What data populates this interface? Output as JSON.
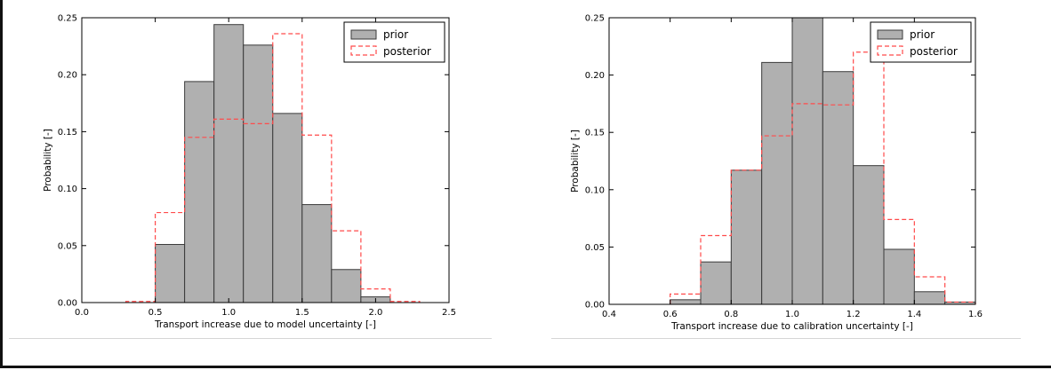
{
  "chart_data": [
    {
      "type": "bar",
      "xlabel": "Transport increase due to model uncertainty [-]",
      "ylabel": "Probability [-]",
      "xlim": [
        0.0,
        2.5
      ],
      "ylim": [
        0.0,
        0.25
      ],
      "xticks": [
        "0.0",
        "0.5",
        "1.0",
        "1.5",
        "2.0",
        "2.5"
      ],
      "yticks": [
        "0.00",
        "0.05",
        "0.10",
        "0.15",
        "0.20",
        "0.25"
      ],
      "bin_edges": [
        0.3,
        0.5,
        0.7,
        0.9,
        1.1,
        1.3,
        1.5,
        1.7,
        1.9,
        2.1,
        2.3
      ],
      "legend_position": "top-right",
      "series": [
        {
          "name": "prior",
          "style": "filled",
          "values": [
            0.0,
            0.051,
            0.194,
            0.244,
            0.226,
            0.166,
            0.086,
            0.029,
            0.005,
            0.0
          ]
        },
        {
          "name": "posterior",
          "style": "dashed",
          "values": [
            0.001,
            0.079,
            0.145,
            0.161,
            0.157,
            0.236,
            0.147,
            0.063,
            0.012,
            0.001
          ]
        }
      ]
    },
    {
      "type": "bar",
      "xlabel": "Transport increase due to calibration uncertainty [-]",
      "ylabel": "Probability [-]",
      "xlim": [
        0.4,
        1.6
      ],
      "ylim": [
        0.0,
        0.25
      ],
      "xticks": [
        "0.4",
        "0.6",
        "0.8",
        "1.0",
        "1.2",
        "1.4",
        "1.6"
      ],
      "yticks": [
        "0.00",
        "0.05",
        "0.10",
        "0.15",
        "0.20",
        "0.25"
      ],
      "bin_edges": [
        0.6,
        0.7,
        0.8,
        0.9,
        1.0,
        1.1,
        1.2,
        1.3,
        1.4,
        1.5,
        1.6
      ],
      "legend_position": "top-right",
      "series": [
        {
          "name": "prior",
          "style": "filled",
          "values": [
            0.004,
            0.037,
            0.117,
            0.211,
            0.25,
            0.203,
            0.121,
            0.048,
            0.011,
            0.002
          ]
        },
        {
          "name": "posterior",
          "style": "dashed",
          "values": [
            0.009,
            0.06,
            0.117,
            0.147,
            0.175,
            0.174,
            0.22,
            0.074,
            0.024,
            0.002
          ]
        }
      ]
    }
  ],
  "colors": {
    "prior_fill": "#b0b0b0",
    "prior_edge": "#3a3a3a",
    "posterior": "#ff4a4a"
  }
}
